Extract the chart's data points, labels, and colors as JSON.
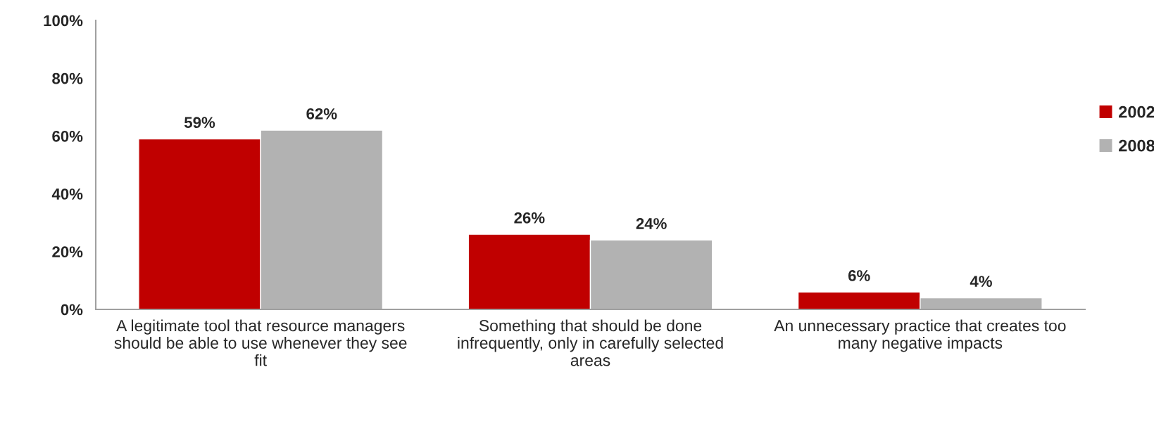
{
  "chart_data": {
    "type": "bar",
    "categories": [
      "A legitimate tool that resource managers should be able to use whenever they see fit",
      "Something that should be done infrequently, only in carefully selected areas",
      "An unnecessary practice that creates too many negative impacts"
    ],
    "series": [
      {
        "name": "2002",
        "color": "#c00000",
        "values": [
          59,
          26,
          6
        ],
        "value_labels": [
          "59%",
          "26%",
          "6%"
        ]
      },
      {
        "name": "2008",
        "color": "#b2b2b2",
        "values": [
          62,
          24,
          4
        ],
        "value_labels": [
          "62%",
          "24%",
          "4%"
        ]
      }
    ],
    "ylim": [
      0,
      100
    ],
    "yticks": [
      {
        "value": 0,
        "label": "0%"
      },
      {
        "value": 20,
        "label": "20%"
      },
      {
        "value": 40,
        "label": "40%"
      },
      {
        "value": 60,
        "label": "60%"
      },
      {
        "value": 80,
        "label": "80%"
      },
      {
        "value": 100,
        "label": "100%"
      }
    ],
    "grid": false,
    "legend": "right"
  }
}
